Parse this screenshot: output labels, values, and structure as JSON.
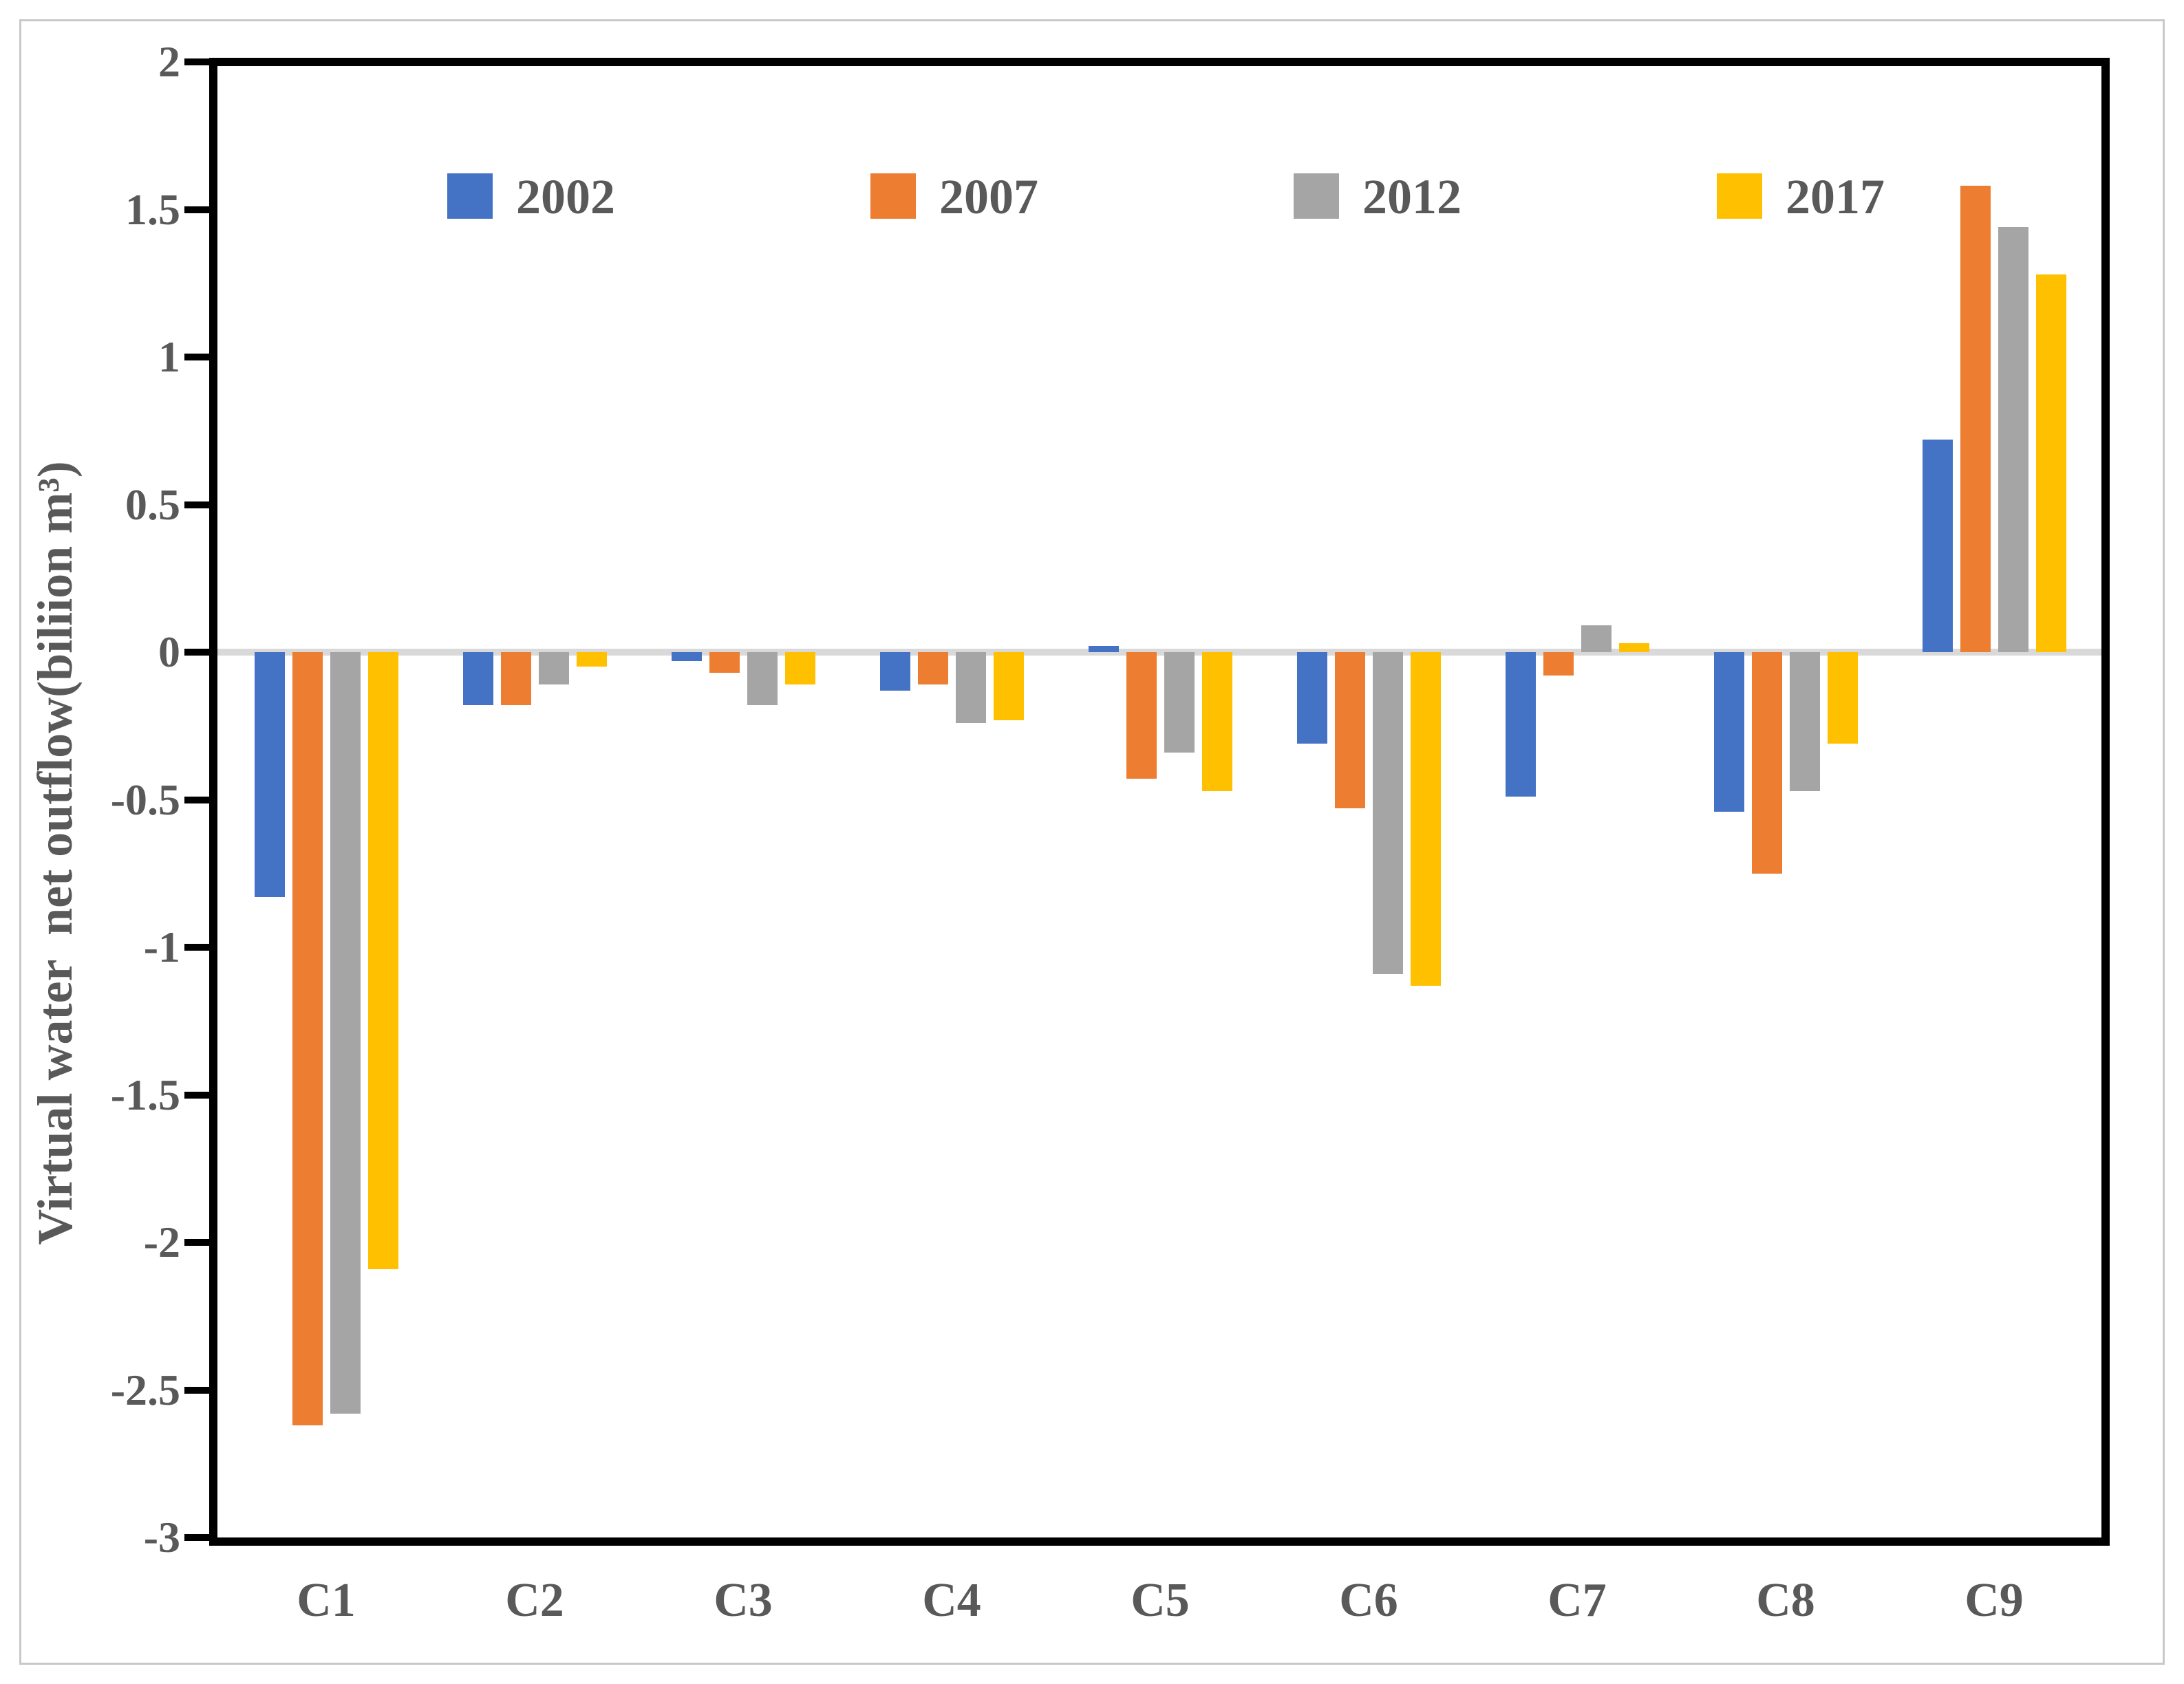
{
  "figure": {
    "y_axis_title": "Virtual water  net outflow(biliion m³)",
    "border_color": "#c9c9c9",
    "axis_color": "#000000",
    "zero_line_color": "#d9d9d9",
    "label_color": "#595959"
  },
  "chart_data": {
    "type": "bar",
    "title": "",
    "xlabel": "",
    "ylabel": "Virtual water  net outflow(biliion m³)",
    "ylim": [
      -3,
      2
    ],
    "ytick_step": 0.5,
    "ytick_labels": [
      "2",
      "1.5",
      "1",
      "0.5",
      "0",
      "-0.5",
      "-1",
      "-1.5",
      "-2",
      "-2.5",
      "-3"
    ],
    "grid": "zero-line-only",
    "legend_position": "top",
    "categories": [
      "C1",
      "C2",
      "C3",
      "C4",
      "C5",
      "C6",
      "C7",
      "C8",
      "C9"
    ],
    "series": [
      {
        "name": "2002",
        "color": "#4472C4",
        "values": [
          -0.83,
          -0.18,
          -0.03,
          -0.13,
          0.02,
          -0.31,
          -0.49,
          -0.54,
          0.72
        ]
      },
      {
        "name": "2007",
        "color": "#ED7D31",
        "values": [
          -2.62,
          -0.18,
          -0.07,
          -0.11,
          -0.43,
          -0.53,
          -0.08,
          -0.75,
          1.58
        ]
      },
      {
        "name": "2012",
        "color": "#A5A5A5",
        "values": [
          -2.58,
          -0.11,
          -0.18,
          -0.24,
          -0.34,
          -1.09,
          0.09,
          -0.47,
          1.44
        ]
      },
      {
        "name": "2017",
        "color": "#FFC000",
        "values": [
          -2.09,
          -0.05,
          -0.11,
          -0.23,
          -0.47,
          -1.13,
          0.03,
          -0.31,
          1.28
        ]
      }
    ]
  }
}
